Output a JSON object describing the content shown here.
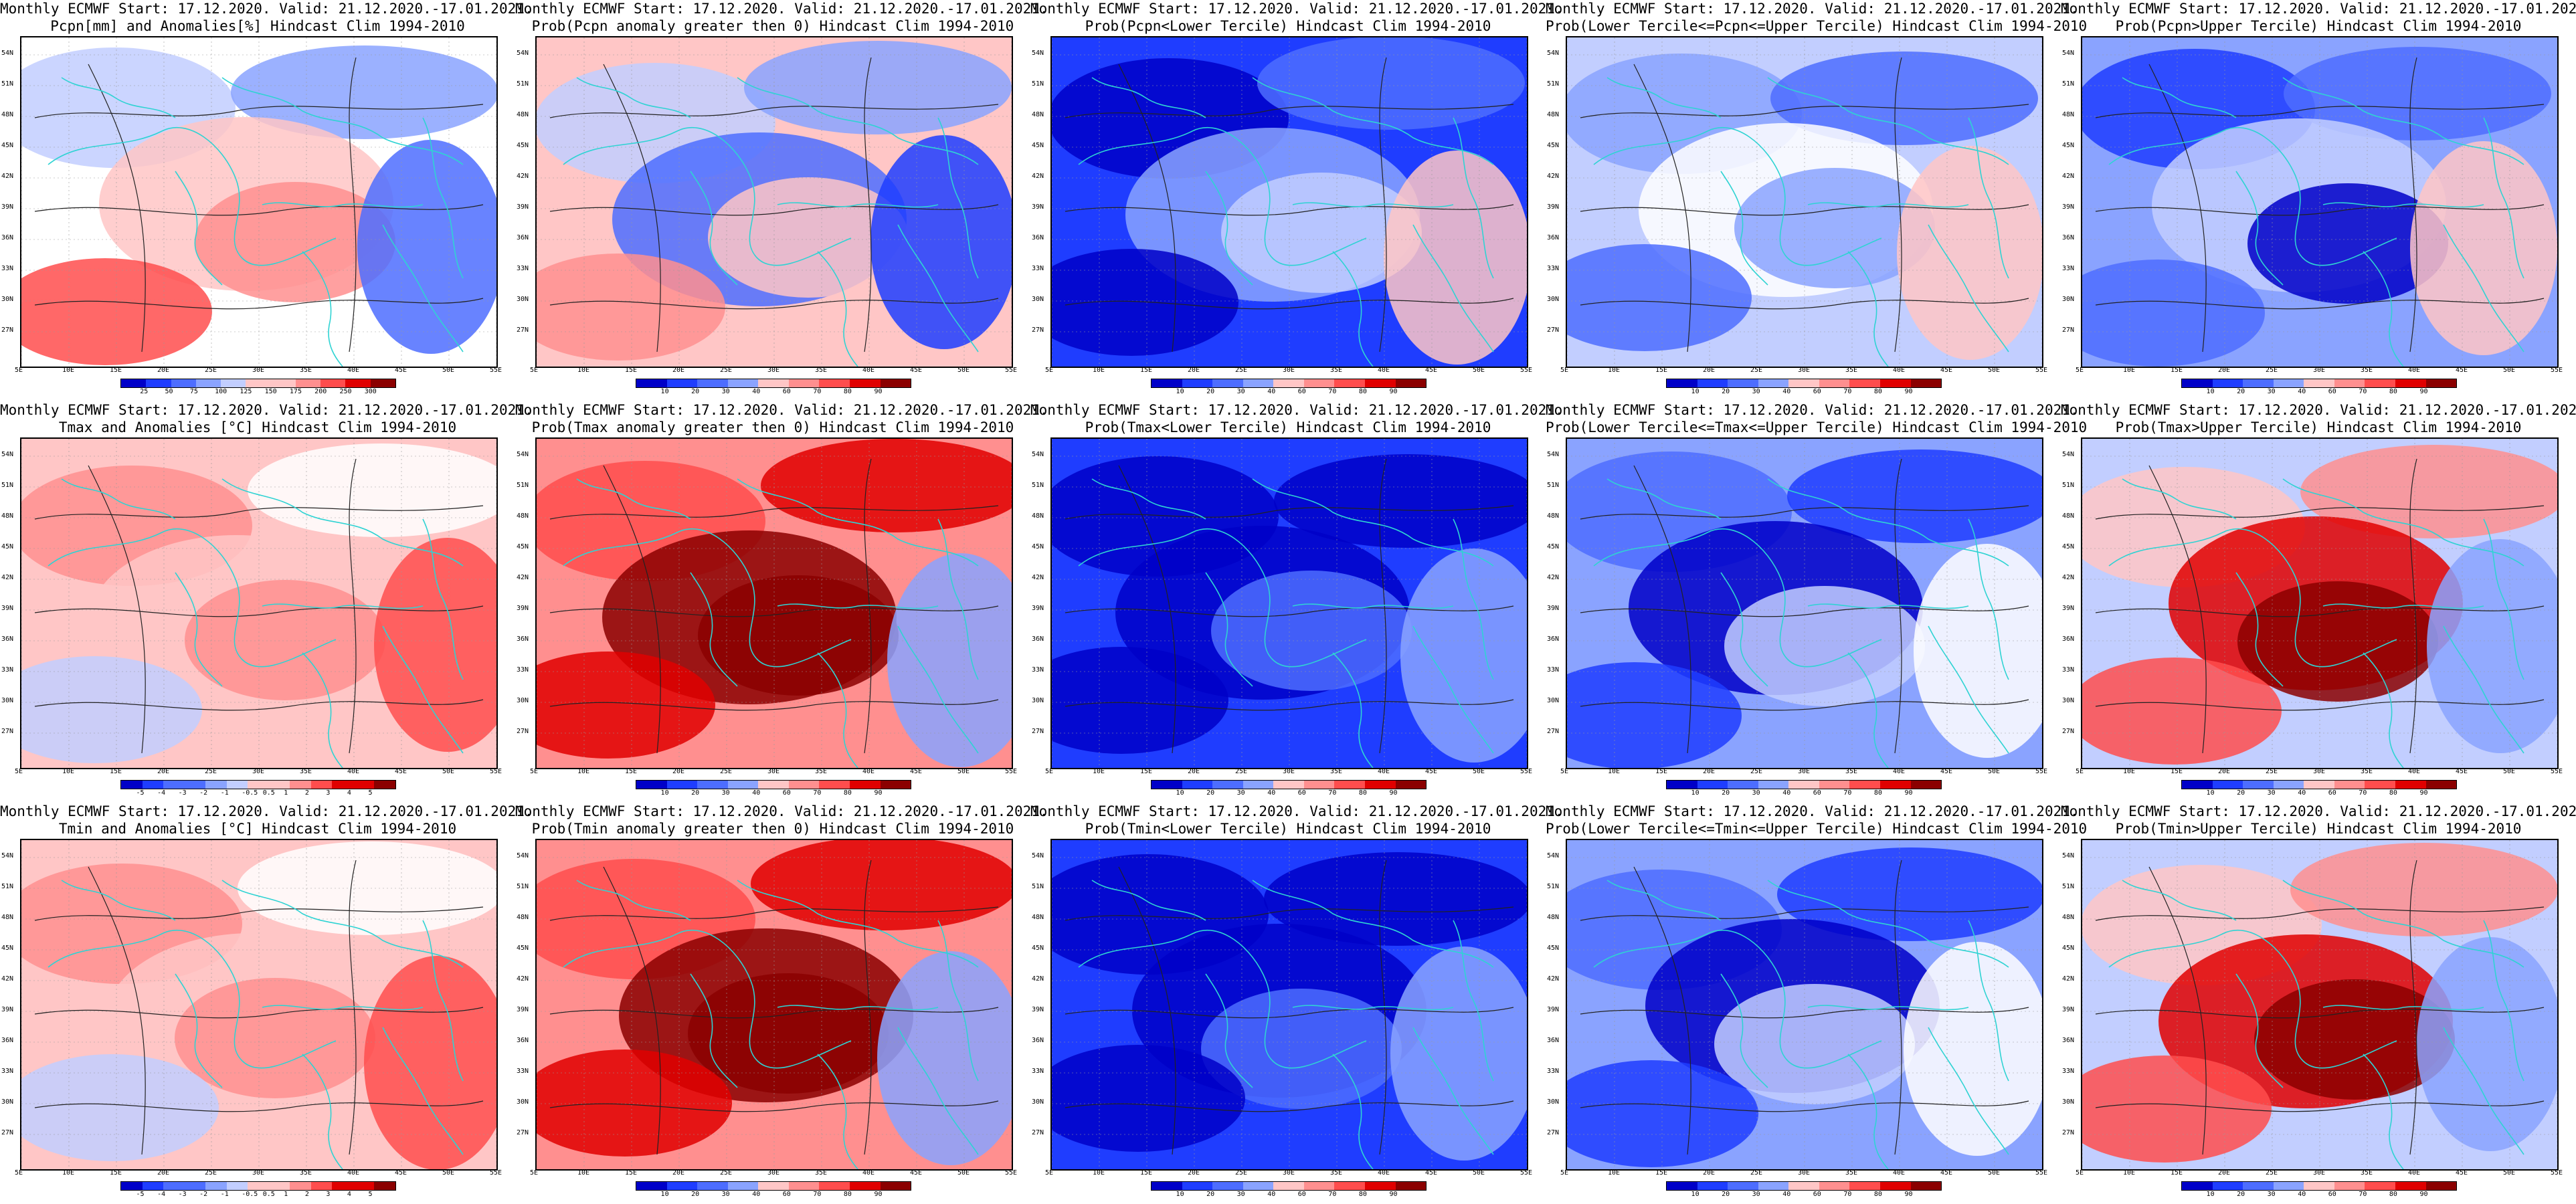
{
  "header_line": "Monthly ECMWF Start: 17.12.2020. Valid: 21.12.2020.-17.01.2021.",
  "panels": [
    {
      "id": "p1",
      "title2": "Pcpn[mm] and Anomalies[%] Hindcast Clim 1994-2010",
      "palette": "anom",
      "cbar": [
        "25",
        "50",
        "75",
        "100",
        "125",
        "150",
        "175",
        "200",
        "250",
        "300"
      ]
    },
    {
      "id": "p2",
      "title2": "Prob(Pcpn anomaly greater then 0) Hindcast Clim 1994-2010",
      "palette": "prob",
      "cbar": [
        "10",
        "20",
        "30",
        "40",
        "60",
        "70",
        "80",
        "90"
      ]
    },
    {
      "id": "p3",
      "title2": "Prob(Pcpn<Lower Tercile) Hindcast Clim 1994-2010",
      "palette": "low",
      "cbar": [
        "10",
        "20",
        "30",
        "40",
        "60",
        "70",
        "80",
        "90"
      ]
    },
    {
      "id": "p4",
      "title2": "Prob(Lower Tercile<=Pcpn<=Upper Tercile) Hindcast Clim 1994-2010",
      "palette": "mid",
      "cbar": [
        "10",
        "20",
        "30",
        "40",
        "60",
        "70",
        "80",
        "90"
      ]
    },
    {
      "id": "p5",
      "title2": "Prob(Pcpn>Upper Tercile) Hindcast Clim 1994-2010",
      "palette": "up",
      "cbar": [
        "10",
        "20",
        "30",
        "40",
        "60",
        "70",
        "80",
        "90"
      ]
    },
    {
      "id": "p6",
      "title2": "Tmax and Anomalies [°C] Hindcast Clim 1994-2010",
      "palette": "tanom",
      "cbar": [
        "-5",
        "-4",
        "-3",
        "-2",
        "-1",
        "-0.5",
        "0.5",
        "1",
        "2",
        "3",
        "4",
        "5"
      ]
    },
    {
      "id": "p7",
      "title2": "Prob(Tmax anomaly greater then 0) Hindcast Clim 1994-2010",
      "palette": "hot",
      "cbar": [
        "10",
        "20",
        "30",
        "40",
        "60",
        "70",
        "80",
        "90"
      ]
    },
    {
      "id": "p8",
      "title2": "Prob(Tmax<Lower Tercile) Hindcast Clim 1994-2010",
      "palette": "cold",
      "cbar": [
        "10",
        "20",
        "30",
        "40",
        "60",
        "70",
        "80",
        "90"
      ]
    },
    {
      "id": "p9",
      "title2": "Prob(Lower Tercile<=Tmax<=Upper Tercile) Hindcast Clim 1994-2010",
      "palette": "coldmid",
      "cbar": [
        "10",
        "20",
        "30",
        "40",
        "60",
        "70",
        "80",
        "90"
      ]
    },
    {
      "id": "p10",
      "title2": "Prob(Tmax>Upper Tercile) Hindcast Clim 1994-2010",
      "palette": "hotup",
      "cbar": [
        "10",
        "20",
        "30",
        "40",
        "60",
        "70",
        "80",
        "90"
      ]
    },
    {
      "id": "p11",
      "title2": "Tmin and Anomalies [°C] Hindcast Clim 1994-2010",
      "palette": "tanom",
      "cbar": [
        "-5",
        "-4",
        "-3",
        "-2",
        "-1",
        "-0.5",
        "0.5",
        "1",
        "2",
        "3",
        "4",
        "5"
      ]
    },
    {
      "id": "p12",
      "title2": "Prob(Tmin anomaly greater then 0) Hindcast Clim 1994-2010",
      "palette": "hot",
      "cbar": [
        "10",
        "20",
        "30",
        "40",
        "60",
        "70",
        "80",
        "90"
      ]
    },
    {
      "id": "p13",
      "title2": "Prob(Tmin<Lower Tercile) Hindcast Clim 1994-2010",
      "palette": "cold",
      "cbar": [
        "10",
        "20",
        "30",
        "40",
        "60",
        "70",
        "80",
        "90"
      ]
    },
    {
      "id": "p14",
      "title2": "Prob(Lower Tercile<=Tmin<=Upper Tercile) Hindcast Clim 1994-2010",
      "palette": "coldmid",
      "cbar": [
        "10",
        "20",
        "30",
        "40",
        "60",
        "70",
        "80",
        "90"
      ]
    },
    {
      "id": "p15",
      "title2": "Prob(Tmin>Upper Tercile) Hindcast Clim 1994-2010",
      "palette": "hotup",
      "cbar": [
        "10",
        "20",
        "30",
        "40",
        "60",
        "70",
        "80",
        "90"
      ]
    }
  ],
  "lat_labels": [
    "54N",
    "51N",
    "48N",
    "45N",
    "42N",
    "39N",
    "36N",
    "33N",
    "30N",
    "27N"
  ],
  "lon_labels": [
    "5E",
    "10E",
    "15E",
    "20E",
    "25E",
    "30E",
    "35E",
    "40E",
    "45E",
    "50E",
    "55E"
  ],
  "colors": {
    "coast": "#2fd3d3",
    "contour": "#222222",
    "blue_ramp": [
      "#0000c8",
      "#1f3dff",
      "#4d6dff",
      "#8aa3ff",
      "#c2ceff",
      "#ffffff"
    ],
    "red_ramp": [
      "#ffffff",
      "#ffc6c6",
      "#ff8f8f",
      "#ff4d4d",
      "#e00000",
      "#8b0000"
    ]
  }
}
